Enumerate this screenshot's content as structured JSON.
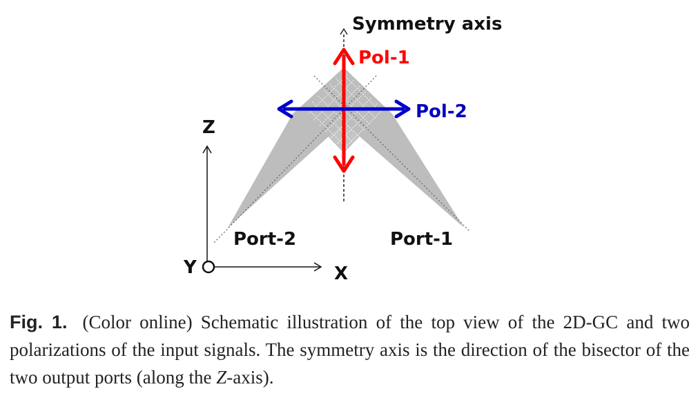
{
  "diagram": {
    "symmetry_axis_label": "Symmetry axis",
    "pol1_label": "Pol-1",
    "pol2_label": "Pol-2",
    "port1_label": "Port-1",
    "port2_label": "Port-2",
    "axis_z_label": "Z",
    "axis_x_label": "X",
    "axis_y_label": "Y",
    "colors": {
      "pol1": "#ff0000",
      "pol2": "#0000cc",
      "coupler": "#bdbdbd",
      "pol1_text": "#ff0000",
      "pol2_text": "#0000bb"
    }
  },
  "caption": {
    "label": "Fig. 1.",
    "text_before": "(Color online) Schematic illustration of the top view of the 2D-GC and two polarizations of the input signals. The symmetry axis is the direction of the bisector of the two output ports (along the ",
    "italic": "Z",
    "text_after": "-axis)."
  }
}
